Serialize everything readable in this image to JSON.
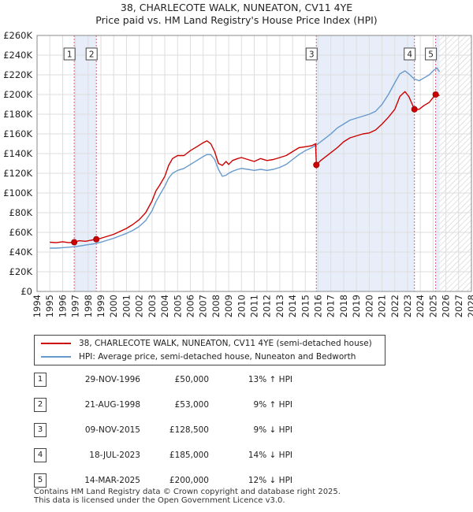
{
  "title": {
    "line1": "38, CHARLECOTE WALK, NUNEATON, CV11 4YE",
    "line2": "Price paid vs. HM Land Registry's House Price Index (HPI)"
  },
  "colors": {
    "price_line": "#cc0000",
    "hpi_line": "#6699cc",
    "shade": "#e8eef9",
    "marker": "#cc0000",
    "vline": "#cc6677",
    "hatch": "#c8c8c8"
  },
  "legend": {
    "price_label": "38, CHARLECOTE WALK, NUNEATON, CV11 4YE (semi-detached house)",
    "hpi_label": "HPI: Average price, semi-detached house, Nuneaton and Bedworth"
  },
  "chart_data": {
    "type": "line",
    "title": "Price paid vs. HM Land Registry's House Price Index (HPI)",
    "xlabel": "",
    "ylabel": "",
    "xlim": [
      1994,
      2028
    ],
    "ylim": [
      0,
      260000
    ],
    "x_ticks": [
      1994,
      1995,
      1996,
      1997,
      1998,
      1999,
      2000,
      2001,
      2002,
      2003,
      2004,
      2005,
      2006,
      2007,
      2008,
      2009,
      2010,
      2011,
      2012,
      2013,
      2014,
      2015,
      2016,
      2017,
      2018,
      2019,
      2020,
      2021,
      2022,
      2023,
      2024,
      2025,
      2026,
      2027,
      2028
    ],
    "y_ticks": [
      {
        "value": 0,
        "label": "£0"
      },
      {
        "value": 20000,
        "label": "£20K"
      },
      {
        "value": 40000,
        "label": "£40K"
      },
      {
        "value": 60000,
        "label": "£60K"
      },
      {
        "value": 80000,
        "label": "£80K"
      },
      {
        "value": 100000,
        "label": "£100K"
      },
      {
        "value": 120000,
        "label": "£120K"
      },
      {
        "value": 140000,
        "label": "£140K"
      },
      {
        "value": 160000,
        "label": "£160K"
      },
      {
        "value": 180000,
        "label": "£180K"
      },
      {
        "value": 200000,
        "label": "£200K"
      },
      {
        "value": 220000,
        "label": "£220K"
      },
      {
        "value": 240000,
        "label": "£240K"
      },
      {
        "value": 260000,
        "label": "£260K"
      }
    ],
    "grid": true,
    "data_end": 2025.5,
    "shaded_ranges": [
      [
        1996.91,
        1998.64
      ],
      [
        2015.86,
        2023.54
      ],
      [
        2025.2,
        2025.5
      ]
    ],
    "series": [
      {
        "name": "38, CHARLECOTE WALK, NUNEATON, CV11 4YE (semi-detached house)",
        "x": [
          1995.0,
          1995.5,
          1996.0,
          1996.5,
          1996.91,
          1997.3,
          1997.8,
          1998.2,
          1998.64,
          1999.0,
          1999.5,
          2000.0,
          2000.5,
          2001.0,
          2001.5,
          2002.0,
          2002.5,
          2003.0,
          2003.3,
          2003.6,
          2004.0,
          2004.3,
          2004.6,
          2005.0,
          2005.5,
          2006.0,
          2006.5,
          2007.0,
          2007.3,
          2007.6,
          2007.9,
          2008.2,
          2008.5,
          2008.8,
          2009.0,
          2009.3,
          2009.7,
          2010.0,
          2010.5,
          2011.0,
          2011.5,
          2012.0,
          2012.5,
          2013.0,
          2013.5,
          2014.0,
          2014.5,
          2015.0,
          2015.5,
          2015.8,
          2015.86,
          2016.2,
          2016.6,
          2017.0,
          2017.5,
          2018.0,
          2018.5,
          2019.0,
          2019.5,
          2020.0,
          2020.5,
          2021.0,
          2021.5,
          2022.0,
          2022.4,
          2022.8,
          2023.1,
          2023.54,
          2023.9,
          2024.3,
          2024.7,
          2025.0,
          2025.2,
          2025.5
        ],
        "values": [
          50000,
          49500,
          50500,
          49500,
          50000,
          51500,
          51000,
          52000,
          53000,
          54000,
          56000,
          58000,
          61000,
          64000,
          68000,
          73000,
          80000,
          92000,
          102000,
          108000,
          117000,
          128000,
          135000,
          138000,
          138000,
          143000,
          147000,
          151000,
          153000,
          150000,
          142000,
          130000,
          128000,
          132000,
          129000,
          133000,
          135000,
          136000,
          134000,
          132000,
          135000,
          133000,
          134000,
          136000,
          138000,
          142000,
          146000,
          147000,
          148000,
          150000,
          128500,
          133000,
          137000,
          141000,
          146000,
          152000,
          156000,
          158000,
          160000,
          161000,
          164000,
          170000,
          177000,
          185000,
          198000,
          203000,
          198000,
          185000,
          185000,
          189000,
          192000,
          197000,
          200000,
          199000
        ]
      },
      {
        "name": "HPI: Average price, semi-detached house, Nuneaton and Bedworth",
        "x": [
          1995.0,
          1995.5,
          1996.0,
          1996.5,
          1997.0,
          1997.5,
          1998.0,
          1998.5,
          1999.0,
          1999.5,
          2000.0,
          2000.5,
          2001.0,
          2001.5,
          2002.0,
          2002.5,
          2003.0,
          2003.3,
          2003.6,
          2004.0,
          2004.3,
          2004.6,
          2005.0,
          2005.5,
          2006.0,
          2006.5,
          2007.0,
          2007.3,
          2007.6,
          2007.9,
          2008.2,
          2008.5,
          2008.8,
          2009.0,
          2009.3,
          2009.7,
          2010.0,
          2010.5,
          2011.0,
          2011.5,
          2012.0,
          2012.5,
          2013.0,
          2013.5,
          2014.0,
          2014.5,
          2015.0,
          2015.5,
          2016.0,
          2016.5,
          2017.0,
          2017.5,
          2018.0,
          2018.5,
          2019.0,
          2019.5,
          2020.0,
          2020.5,
          2021.0,
          2021.5,
          2022.0,
          2022.4,
          2022.8,
          2023.1,
          2023.5,
          2023.9,
          2024.3,
          2024.7,
          2025.0,
          2025.3,
          2025.5
        ],
        "values": [
          44000,
          44000,
          44500,
          45000,
          45500,
          46500,
          47500,
          48500,
          50000,
          52000,
          54000,
          56500,
          59000,
          62000,
          66000,
          72000,
          82000,
          91000,
          98000,
          107000,
          115000,
          120000,
          123000,
          125000,
          129000,
          133000,
          137000,
          139000,
          139000,
          134000,
          124000,
          117000,
          118000,
          120000,
          122000,
          124000,
          125000,
          124000,
          123000,
          124000,
          123000,
          124000,
          126000,
          129000,
          134000,
          139000,
          143000,
          146000,
          150000,
          155000,
          160000,
          166000,
          170000,
          174000,
          176000,
          178000,
          180000,
          183000,
          190000,
          200000,
          212000,
          221000,
          224000,
          221000,
          216000,
          214000,
          217000,
          220000,
          224000,
          227000,
          223000
        ]
      }
    ],
    "sales": [
      {
        "label": "1",
        "date": "29-NOV-1996",
        "x": 1996.91,
        "price": 50000,
        "price_text": "£50,000",
        "hpi": "13% ↑ HPI"
      },
      {
        "label": "2",
        "date": "21-AUG-1998",
        "x": 1998.64,
        "price": 53000,
        "price_text": "£53,000",
        "hpi": "9% ↑ HPI"
      },
      {
        "label": "3",
        "date": "09-NOV-2015",
        "x": 2015.86,
        "price": 128500,
        "price_text": "£128,500",
        "hpi": "9% ↓ HPI"
      },
      {
        "label": "4",
        "date": "18-JUL-2023",
        "x": 2023.54,
        "price": 185000,
        "price_text": "£185,000",
        "hpi": "14% ↓ HPI"
      },
      {
        "label": "5",
        "date": "14-MAR-2025",
        "x": 2025.2,
        "price": 200000,
        "price_text": "£200,000",
        "hpi": "12% ↓ HPI"
      }
    ]
  },
  "footer": {
    "line1": "Contains HM Land Registry data © Crown copyright and database right 2025.",
    "line2": "This data is licensed under the Open Government Licence v3.0."
  }
}
